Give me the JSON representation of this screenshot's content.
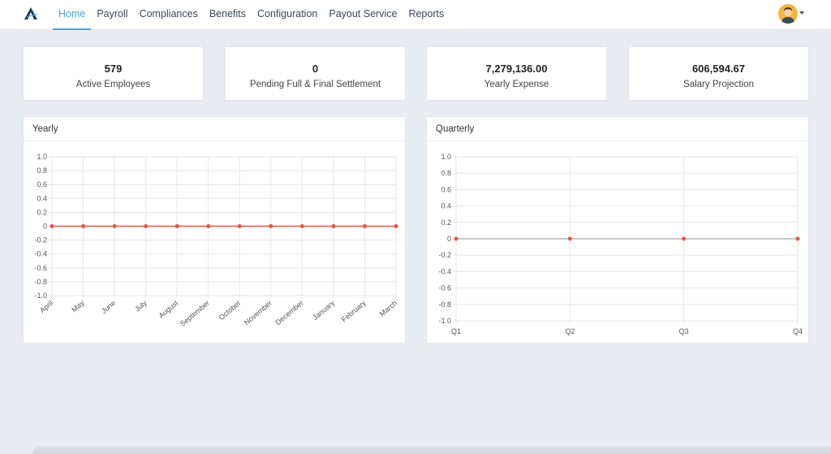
{
  "nav": {
    "links": [
      {
        "label": "Home",
        "active": true
      },
      {
        "label": "Payroll",
        "active": false
      },
      {
        "label": "Compliances",
        "active": false
      },
      {
        "label": "Benefits",
        "active": false
      },
      {
        "label": "Configuration",
        "active": false
      },
      {
        "label": "Payout Service",
        "active": false
      },
      {
        "label": "Reports",
        "active": false
      }
    ],
    "logo_icon": "triangle-logo-icon",
    "avatar_icon": "user-avatar-icon"
  },
  "stats": [
    {
      "value": "579",
      "label": "Active Employees"
    },
    {
      "value": "0",
      "label": "Pending Full & Final Settlement"
    },
    {
      "value": "7,279,136.00",
      "label": "Yearly Expense"
    },
    {
      "value": "606,594.67",
      "label": "Salary Projection"
    }
  ],
  "colors": {
    "accent": "#4aa3df",
    "line_yearly": "#e8544b",
    "line_quarterly": "#b5b5b5",
    "point": "#e8544b",
    "grid": "#e6e6e6"
  },
  "chart_data": [
    {
      "title": "Yearly",
      "type": "line",
      "categories": [
        "April",
        "May",
        "June",
        "July",
        "August",
        "September",
        "October",
        "November",
        "December",
        "January",
        "February",
        "March"
      ],
      "values": [
        0,
        0,
        0,
        0,
        0,
        0,
        0,
        0,
        0,
        0,
        0,
        0
      ],
      "ylim": [
        -1.0,
        1.0
      ],
      "yticks": [
        "1.0",
        "0.8",
        "0.6",
        "0.4",
        "0.2",
        "0",
        "-0.2",
        "-0.4",
        "-0.6",
        "-0.8",
        "-1.0"
      ],
      "grid": true,
      "xtick_rotation": "diagonal"
    },
    {
      "title": "Quarterly",
      "type": "line",
      "categories": [
        "Q1",
        "Q2",
        "Q3",
        "Q4"
      ],
      "values": [
        0,
        0,
        0,
        0
      ],
      "ylim": [
        -1.0,
        1.0
      ],
      "yticks": [
        "1.0",
        "0.8",
        "0.6",
        "0.4",
        "0.2",
        "0",
        "-0.2",
        "-0.4",
        "-0.6",
        "-0.8",
        "-1.0"
      ],
      "grid": true,
      "xtick_rotation": "none"
    }
  ]
}
